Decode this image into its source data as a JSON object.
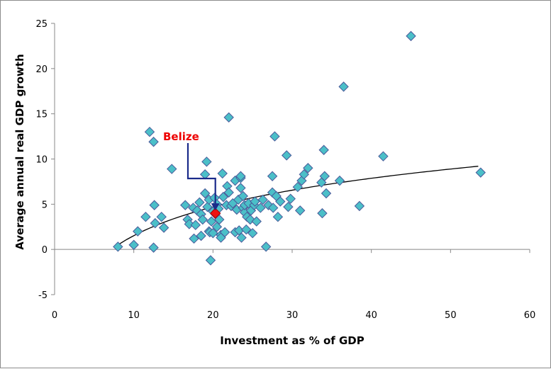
{
  "chart_data": {
    "type": "scatter",
    "xlabel": "Investment as % of GDP",
    "ylabel": "Average annual real GDP growth",
    "xlim": [
      0,
      60
    ],
    "ylim": [
      -5,
      25
    ],
    "xticks": [
      "0",
      "10",
      "20",
      "30",
      "40",
      "50",
      "60"
    ],
    "yticks": [
      "-5",
      "0",
      "5",
      "10",
      "15",
      "20",
      "25"
    ],
    "grid": false,
    "legend": "none",
    "marker_color": "#4bbfc8",
    "marker_edge": "#4a5a9a",
    "highlight_color": "#ee1111",
    "arrow_color": "#1a2a8a",
    "trend": {
      "type": "logarithmic",
      "x_start": 8,
      "x_end": 53.5,
      "y_start": 0.5,
      "y_end": 9.2
    },
    "annotation": {
      "text": "Belize",
      "x": 20.3,
      "y": 4.0
    },
    "points": [
      [
        8,
        0.3
      ],
      [
        10,
        0.5
      ],
      [
        10.5,
        2
      ],
      [
        11.5,
        3.6
      ],
      [
        12,
        13
      ],
      [
        12.5,
        11.9
      ],
      [
        12.5,
        0.2
      ],
      [
        12.6,
        4.9
      ],
      [
        12.7,
        2.9
      ],
      [
        13.5,
        3.6
      ],
      [
        13.8,
        2.4
      ],
      [
        14.8,
        8.9
      ],
      [
        16.5,
        4.9
      ],
      [
        16.8,
        3.3
      ],
      [
        17,
        2.8
      ],
      [
        17.5,
        4.6
      ],
      [
        17.6,
        1.2
      ],
      [
        17.8,
        2.7
      ],
      [
        18,
        4.3
      ],
      [
        18.3,
        5.2
      ],
      [
        18.5,
        1.5
      ],
      [
        18.5,
        3.9
      ],
      [
        18.7,
        3.3
      ],
      [
        19,
        6.2
      ],
      [
        19,
        8.3
      ],
      [
        19.2,
        9.7
      ],
      [
        19.3,
        4.7
      ],
      [
        19.5,
        5.5
      ],
      [
        19.5,
        2
      ],
      [
        19.6,
        1.9
      ],
      [
        19.7,
        -1.2
      ],
      [
        19.8,
        3.1
      ],
      [
        20,
        4.2
      ],
      [
        20,
        1.8
      ],
      [
        20.2,
        5.7
      ],
      [
        20.3,
        3.9
      ],
      [
        20.5,
        2.5
      ],
      [
        20.5,
        5
      ],
      [
        20.7,
        4.5
      ],
      [
        20.8,
        3.3
      ],
      [
        21,
        1.6
      ],
      [
        21,
        1.3
      ],
      [
        21.2,
        8.4
      ],
      [
        21.3,
        5.8
      ],
      [
        21.5,
        1.9
      ],
      [
        21.7,
        4.9
      ],
      [
        21.8,
        7
      ],
      [
        22,
        14.6
      ],
      [
        22,
        6.3
      ],
      [
        22.3,
        4.8
      ],
      [
        22.5,
        5.1
      ],
      [
        22.8,
        7.6
      ],
      [
        22.8,
        1.9
      ],
      [
        23,
        4.4
      ],
      [
        23.2,
        5.5
      ],
      [
        23.3,
        2.1
      ],
      [
        23.5,
        7.9
      ],
      [
        23.5,
        8.1
      ],
      [
        23.5,
        6.8
      ],
      [
        23.6,
        1.3
      ],
      [
        23.8,
        5.9
      ],
      [
        23.8,
        4.6
      ],
      [
        24,
        4.1
      ],
      [
        24,
        4.9
      ],
      [
        24.2,
        2.2
      ],
      [
        24.3,
        3.6
      ],
      [
        24.5,
        5.1
      ],
      [
        24.7,
        3.3
      ],
      [
        24.8,
        4.3
      ],
      [
        25,
        1.8
      ],
      [
        25.2,
        4.9
      ],
      [
        25.3,
        5.3
      ],
      [
        25.5,
        3.1
      ],
      [
        26,
        4.6
      ],
      [
        26.3,
        5.5
      ],
      [
        26.7,
        0.3
      ],
      [
        27,
        4.9
      ],
      [
        27.5,
        8.1
      ],
      [
        27.5,
        6.3
      ],
      [
        27.6,
        4.6
      ],
      [
        27.8,
        12.5
      ],
      [
        28,
        5.9
      ],
      [
        28.2,
        3.6
      ],
      [
        28.5,
        5.3
      ],
      [
        29.3,
        10.4
      ],
      [
        29.5,
        4.7
      ],
      [
        29.8,
        5.6
      ],
      [
        30.7,
        6.9
      ],
      [
        31,
        4.3
      ],
      [
        31.2,
        7.6
      ],
      [
        31.5,
        8.3
      ],
      [
        32,
        9
      ],
      [
        33.7,
        7.4
      ],
      [
        33.8,
        4
      ],
      [
        34,
        11
      ],
      [
        34.1,
        8.1
      ],
      [
        34.3,
        6.2
      ],
      [
        36,
        7.6
      ],
      [
        36.5,
        18
      ],
      [
        38.5,
        4.8
      ],
      [
        41.5,
        10.3
      ],
      [
        45,
        23.6
      ],
      [
        53.8,
        8.5
      ]
    ]
  }
}
